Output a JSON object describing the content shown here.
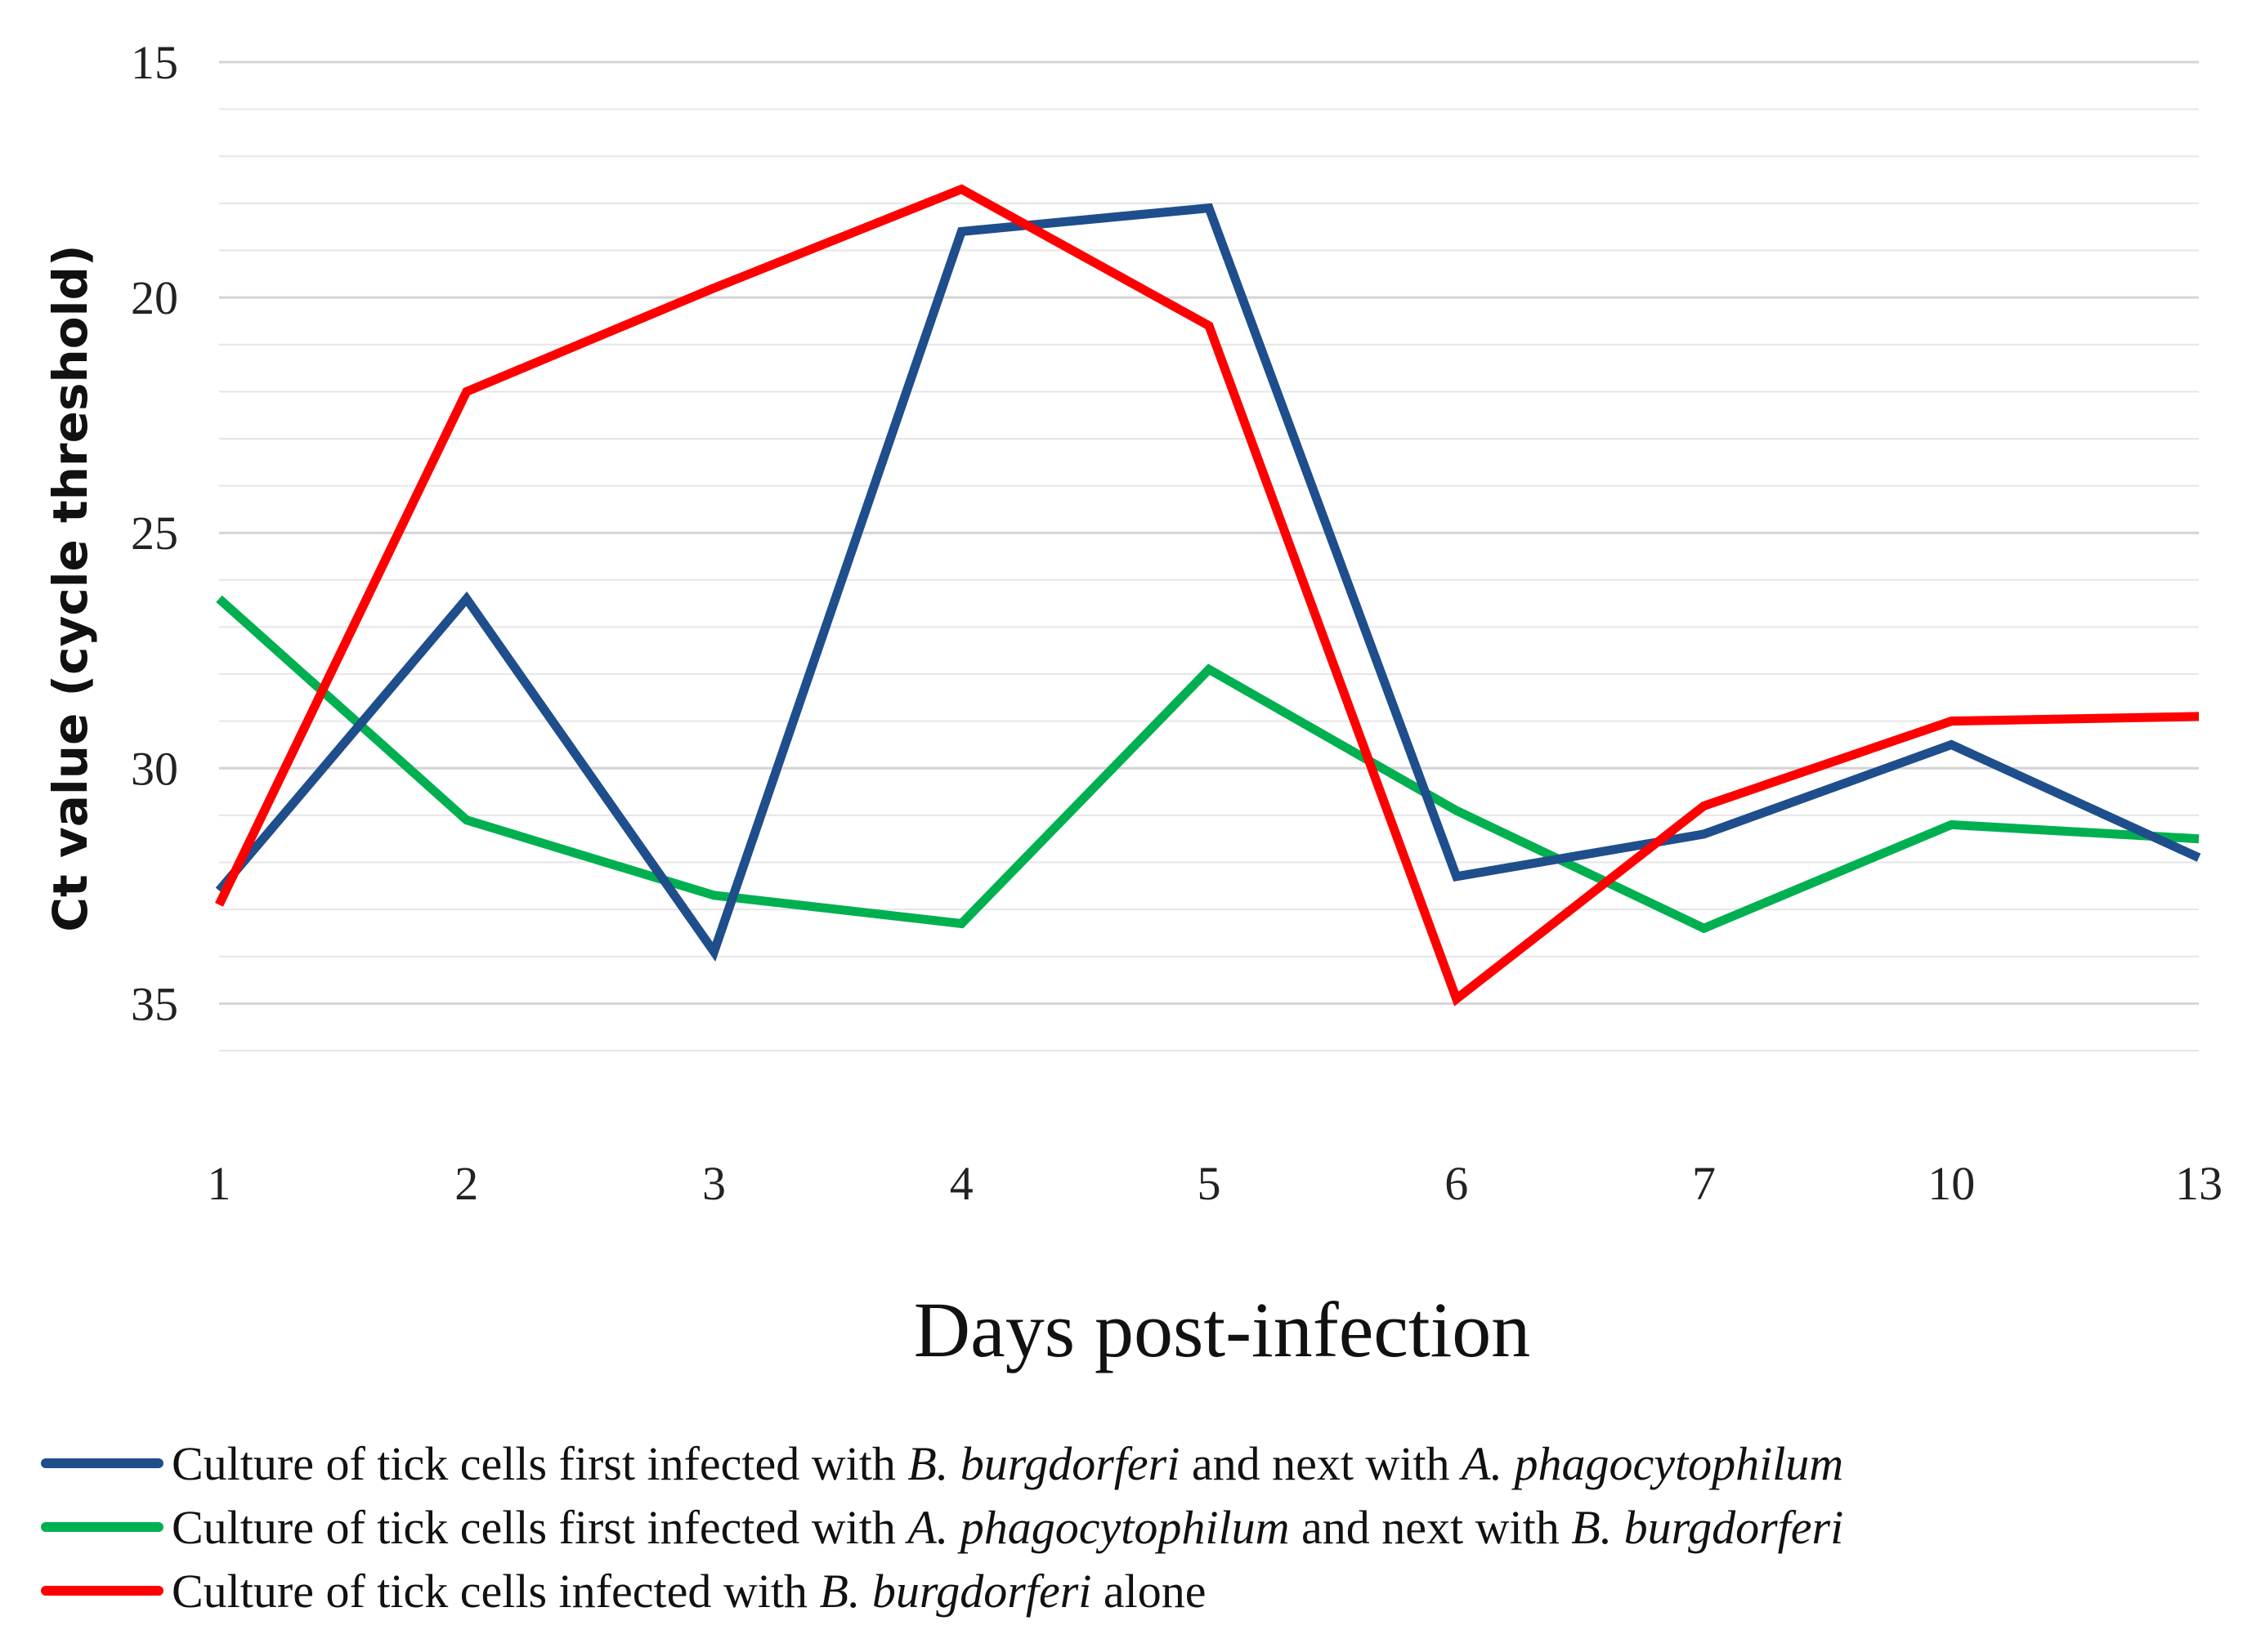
{
  "chart_data": {
    "type": "line",
    "xlabel": "Days post-infection",
    "ylabel": "Ct value (cycle threshold)",
    "x": [
      "1",
      "2",
      "3",
      "4",
      "5",
      "6",
      "7",
      "10",
      "13"
    ],
    "y_axis": {
      "min": 15,
      "max": 35,
      "inverted": true,
      "major_ticks": [
        15,
        20,
        25,
        30,
        35
      ],
      "minor_step": 1
    },
    "grid": true,
    "legend_position": "bottom",
    "series": [
      {
        "name": "Culture of tick cells first infected with B. burgdorferi and next with A. phagocytophilum",
        "color": "#1f4e8c",
        "values": [
          32.6,
          26.4,
          33.9,
          18.6,
          18.1,
          32.3,
          31.4,
          29.5,
          31.9
        ]
      },
      {
        "name": "Culture of tick cells first infected with A. phagocytophilum and next with B. burgdorferi",
        "color": "#00b050",
        "values": [
          26.4,
          31.1,
          32.7,
          33.3,
          27.9,
          30.9,
          33.4,
          31.2,
          31.5
        ]
      },
      {
        "name": "Culture of tick cells infected with B. burgdorferi alone",
        "color": "#ff0000",
        "values": [
          32.9,
          22.0,
          19.8,
          17.7,
          20.6,
          34.9,
          30.8,
          29.0,
          28.9
        ]
      }
    ]
  },
  "legend": [
    {
      "pre": "Culture of tick cells first infected with ",
      "org1": "B. burgdorferi",
      "mid": " and next with ",
      "org2": "A. phagocytophilum"
    },
    {
      "pre": "Culture of tick cells first infected with ",
      "org1": "A. phagocytophilum",
      "mid": " and next with ",
      "org2": "B. burgdorferi"
    },
    {
      "pre": "Culture of tick cells infected with ",
      "org1": "B. burgdorferi",
      "mid": " alone",
      "org2": ""
    }
  ]
}
